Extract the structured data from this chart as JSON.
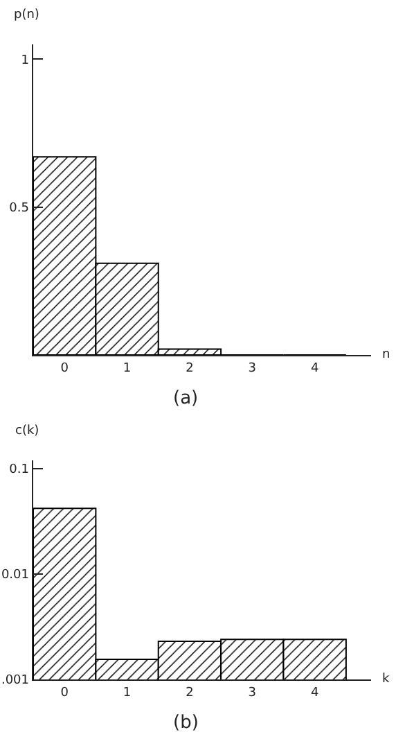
{
  "chart_data": [
    {
      "type": "bar",
      "categories": [
        "0",
        "1",
        "2",
        "3",
        "4"
      ],
      "values": [
        0.67,
        0.31,
        0.02,
        0,
        0
      ],
      "color": "#000000",
      "ylabel": "p(n)",
      "xlabel": "n",
      "ylim": [
        0,
        1.05
      ],
      "yticks": [
        0.5,
        1
      ],
      "annotations": [
        "(a)"
      ]
    },
    {
      "type": "bar",
      "categories": [
        "0",
        "1",
        "2",
        "3",
        "4"
      ],
      "values": [
        0.042,
        0.00155,
        0.0023,
        0.0024,
        0.0024
      ],
      "color": "#000000",
      "ylabel": "c(k)",
      "xlabel": "k",
      "log": true,
      "ylim": [
        0.001,
        0.12
      ],
      "yticks": [
        {
          "value": 0.001,
          "label": ".001"
        },
        {
          "value": 0.01,
          "label": "0.01"
        },
        0.1
      ],
      "annotations": [
        "(b)"
      ]
    }
  ]
}
